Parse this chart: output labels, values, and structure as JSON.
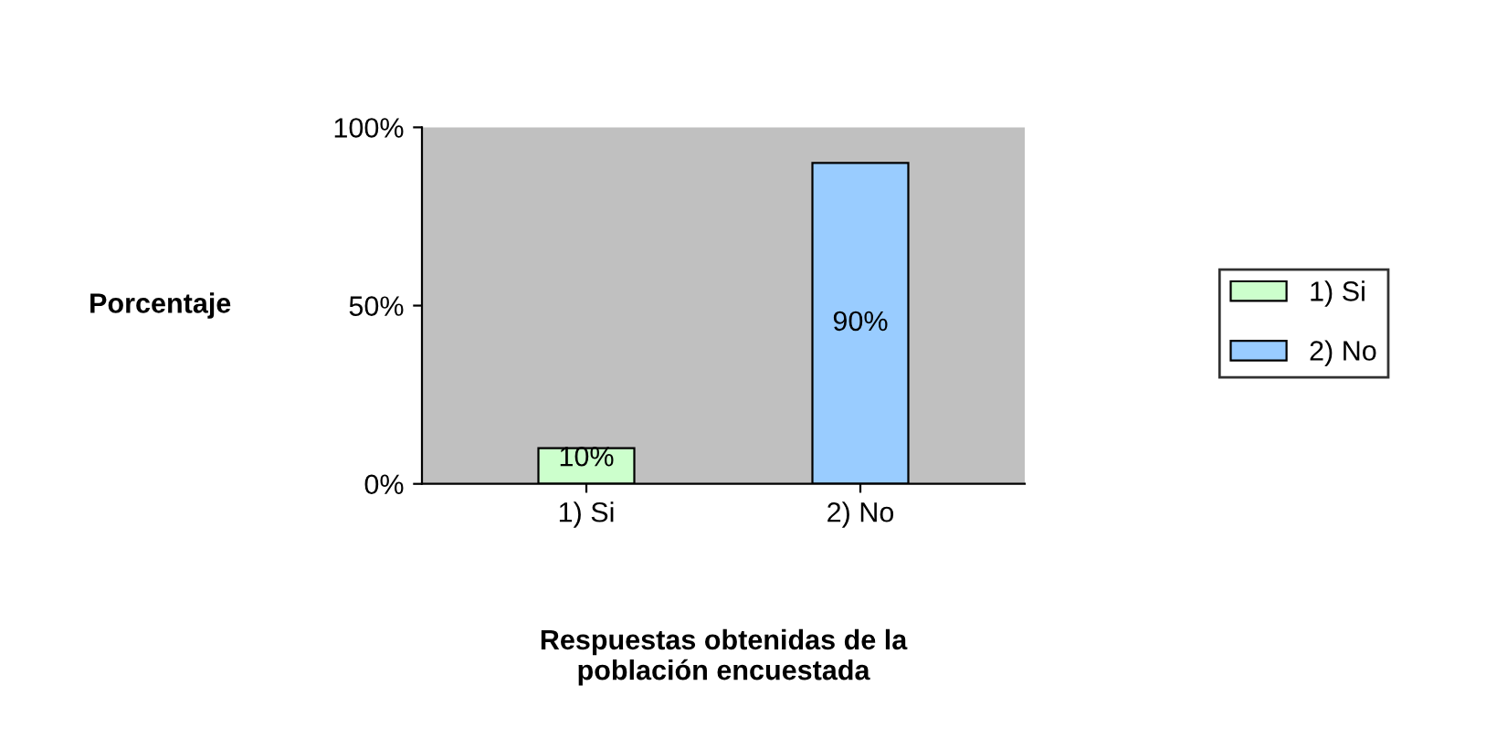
{
  "chart_data": {
    "type": "bar",
    "categories": [
      "1) Si",
      "2) No"
    ],
    "series": [
      {
        "name": "1) Si",
        "color": "#ccffcc",
        "values": [
          10,
          null
        ],
        "value_labels": [
          "10%",
          null
        ]
      },
      {
        "name": "2) No",
        "color": "#99ccff",
        "values": [
          null,
          90
        ],
        "value_labels": [
          null,
          "90%"
        ]
      }
    ],
    "ylim": [
      0,
      100
    ],
    "yticks": [
      {
        "value": 0,
        "label": "0%"
      },
      {
        "value": 50,
        "label": "50%"
      },
      {
        "value": 100,
        "label": "100%"
      }
    ],
    "ylabel": "Porcentaje",
    "xlabel": "Respuestas obtenidas de la\npoblación encuestada",
    "legend": "right"
  }
}
